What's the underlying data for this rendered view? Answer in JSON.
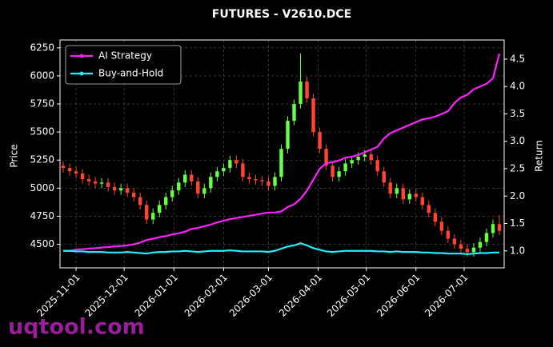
{
  "chart_data": {
    "type": "candlestick",
    "title": "FUTURES - V2610.DCE",
    "ylabel": "Price",
    "y2label": "Return",
    "watermark": "uqtool.com",
    "up_color": "#66ff44",
    "down_color": "#ff4433",
    "x": [
      "2025-10-24",
      "2025-10-28",
      "2025-11-01",
      "2025-11-05",
      "2025-11-09",
      "2025-11-13",
      "2025-11-17",
      "2025-11-21",
      "2025-11-25",
      "2025-11-29",
      "2025-12-03",
      "2025-12-07",
      "2025-12-11",
      "2025-12-15",
      "2025-12-19",
      "2025-12-23",
      "2025-12-27",
      "2025-12-31",
      "2026-01-04",
      "2026-01-08",
      "2026-01-12",
      "2026-01-16",
      "2026-01-20",
      "2026-01-24",
      "2026-01-28",
      "2026-02-01",
      "2026-02-05",
      "2026-02-09",
      "2026-02-13",
      "2026-02-17",
      "2026-02-21",
      "2026-02-25",
      "2026-03-01",
      "2026-03-05",
      "2026-03-09",
      "2026-03-13",
      "2026-03-17",
      "2026-03-21",
      "2026-03-25",
      "2026-03-29",
      "2026-04-02",
      "2026-04-06",
      "2026-04-10",
      "2026-04-14",
      "2026-04-18",
      "2026-04-22",
      "2026-04-26",
      "2026-04-30",
      "2026-05-04",
      "2026-05-08",
      "2026-05-12",
      "2026-05-16",
      "2026-05-20",
      "2026-05-24",
      "2026-05-28",
      "2026-06-01",
      "2026-06-05",
      "2026-06-09",
      "2026-06-13",
      "2026-06-17",
      "2026-06-21",
      "2026-06-25",
      "2026-06-29",
      "2026-07-03",
      "2026-07-07",
      "2026-07-11",
      "2026-07-15",
      "2026-07-19",
      "2026-07-23"
    ],
    "open": [
      5200,
      5180,
      5150,
      5130,
      5080,
      5060,
      5040,
      5050,
      5010,
      4980,
      5000,
      4960,
      4920,
      4850,
      4720,
      4780,
      4850,
      4920,
      4980,
      5050,
      5120,
      5060,
      4950,
      5000,
      5100,
      5150,
      5180,
      5250,
      5220,
      5100,
      5080,
      5070,
      5060,
      5020,
      5100,
      5350,
      5600,
      5750,
      5950,
      5800,
      5500,
      5350,
      5200,
      5100,
      5150,
      5220,
      5250,
      5280,
      5300,
      5250,
      5150,
      5050,
      4950,
      5000,
      4900,
      4950,
      4920,
      4850,
      4780,
      4700,
      4620,
      4550,
      4500,
      4460,
      4430,
      4470,
      4520,
      4600,
      4680
    ],
    "high": [
      5240,
      5220,
      5190,
      5170,
      5120,
      5100,
      5090,
      5090,
      5050,
      5040,
      5040,
      5000,
      4960,
      4890,
      4820,
      4890,
      4960,
      5020,
      5090,
      5160,
      5160,
      5100,
      5040,
      5140,
      5190,
      5220,
      5290,
      5290,
      5260,
      5140,
      5120,
      5110,
      5100,
      5140,
      5390,
      5640,
      5790,
      6200,
      5990,
      5840,
      5540,
      5390,
      5240,
      5190,
      5260,
      5290,
      5320,
      5340,
      5340,
      5290,
      5190,
      5090,
      5040,
      5040,
      4990,
      4990,
      4960,
      4890,
      4820,
      4740,
      4660,
      4590,
      4540,
      4500,
      4510,
      4560,
      4640,
      4720,
      4760
    ],
    "low": [
      5140,
      5110,
      5090,
      5040,
      5020,
      5000,
      5000,
      4970,
      4940,
      4940,
      4920,
      4880,
      4810,
      4680,
      4680,
      4740,
      4810,
      4880,
      4940,
      5010,
      5020,
      4910,
      4910,
      4960,
      5060,
      5110,
      5140,
      5180,
      5060,
      5040,
      5030,
      5020,
      4980,
      4980,
      5060,
      5310,
      5560,
      5710,
      5760,
      5460,
      5310,
      5160,
      5060,
      5060,
      5110,
      5180,
      5210,
      5240,
      5210,
      5110,
      5010,
      4910,
      4910,
      4860,
      4860,
      4880,
      4810,
      4740,
      4660,
      4580,
      4510,
      4460,
      4420,
      4390,
      4390,
      4430,
      4480,
      4560,
      4580
    ],
    "close": [
      5180,
      5150,
      5130,
      5080,
      5060,
      5040,
      5050,
      5010,
      4980,
      5000,
      4960,
      4920,
      4850,
      4720,
      4780,
      4850,
      4920,
      4980,
      5050,
      5120,
      5060,
      4950,
      5000,
      5100,
      5150,
      5180,
      5250,
      5220,
      5100,
      5080,
      5070,
      5060,
      5020,
      5100,
      5350,
      5600,
      5750,
      5950,
      5800,
      5500,
      5350,
      5200,
      5100,
      5150,
      5220,
      5250,
      5280,
      5300,
      5250,
      5150,
      5050,
      4950,
      5000,
      4900,
      4950,
      4920,
      4850,
      4780,
      4700,
      4620,
      4550,
      4500,
      4460,
      4430,
      4470,
      4520,
      4600,
      4680,
      4620
    ],
    "series": [
      {
        "name": "AI Strategy",
        "color": "#ff22ff",
        "axis": "y2",
        "values": [
          1.0,
          1.0,
          1.02,
          1.03,
          1.04,
          1.05,
          1.06,
          1.07,
          1.08,
          1.09,
          1.1,
          1.12,
          1.15,
          1.2,
          1.22,
          1.25,
          1.27,
          1.3,
          1.32,
          1.35,
          1.4,
          1.42,
          1.45,
          1.48,
          1.52,
          1.55,
          1.58,
          1.6,
          1.62,
          1.64,
          1.66,
          1.68,
          1.7,
          1.7,
          1.72,
          1.8,
          1.85,
          1.95,
          2.1,
          2.3,
          2.5,
          2.6,
          2.62,
          2.65,
          2.7,
          2.72,
          2.75,
          2.8,
          2.85,
          2.9,
          3.05,
          3.15,
          3.2,
          3.25,
          3.3,
          3.35,
          3.4,
          3.42,
          3.45,
          3.5,
          3.55,
          3.7,
          3.8,
          3.85,
          3.95,
          4.0,
          4.05,
          4.15,
          4.6
        ]
      },
      {
        "name": "Buy-and-Hold",
        "color": "#22eeff",
        "axis": "y2",
        "values": [
          1.0,
          1.0,
          0.99,
          0.99,
          0.98,
          0.98,
          0.98,
          0.97,
          0.97,
          0.97,
          0.98,
          0.97,
          0.96,
          0.95,
          0.97,
          0.98,
          0.98,
          0.99,
          0.99,
          1.0,
          0.99,
          0.98,
          0.99,
          1.0,
          1.0,
          1.0,
          1.01,
          1.0,
          0.99,
          0.99,
          0.99,
          0.99,
          0.98,
          1.0,
          1.04,
          1.08,
          1.1,
          1.14,
          1.1,
          1.05,
          1.02,
          0.99,
          0.98,
          0.99,
          1.0,
          1.0,
          1.0,
          1.0,
          1.0,
          0.99,
          0.99,
          0.98,
          0.99,
          0.98,
          0.98,
          0.98,
          0.97,
          0.97,
          0.96,
          0.96,
          0.95,
          0.95,
          0.95,
          0.94,
          0.95,
          0.96,
          0.96,
          0.97,
          0.97
        ]
      }
    ],
    "xlim": [
      "2025-10-22",
      "2026-07-26"
    ],
    "xticks": [
      "2025-11-01",
      "2025-12-01",
      "2026-01-01",
      "2026-02-01",
      "2026-03-01",
      "2026-04-01",
      "2026-05-01",
      "2026-06-01",
      "2026-07-01"
    ],
    "ylim": [
      4290,
      6320
    ],
    "yticks": [
      4500,
      4750,
      5000,
      5250,
      5500,
      5750,
      6000,
      6250
    ],
    "y2lim": [
      0.69,
      4.85
    ],
    "y2ticks": [
      {
        "value": 1,
        "label": "1.0"
      },
      1.5,
      {
        "value": 2,
        "label": "2.0"
      },
      2.5,
      {
        "value": 3,
        "label": "3.0"
      },
      3.5,
      {
        "value": 4,
        "label": "4.0"
      },
      4.5
    ],
    "grid": true,
    "legend": "upper left"
  }
}
